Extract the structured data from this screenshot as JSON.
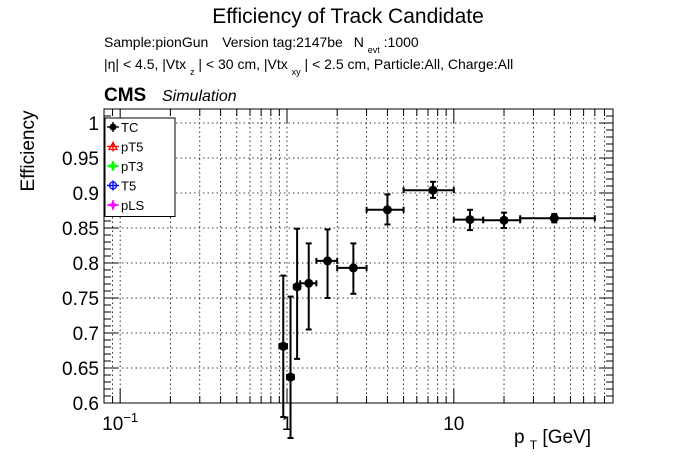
{
  "chart_data": {
    "type": "scatter",
    "title": "Efficiency of Track Candidate",
    "subtitle_line1": {
      "sample": "Sample:pionGun",
      "version": "Version tag:2147be",
      "nevt_prefix": "N",
      "nevt_sub": "evt",
      "nevt_value": ":1000"
    },
    "subtitle_line2": {
      "eta": "|η| < 4.5, |Vtx",
      "z_sub": "z",
      "vtxz": "| < 30 cm, |Vtx",
      "xy_sub": "xy",
      "rest": "| < 2.5 cm, Particle:All, Charge:All"
    },
    "cms_label": "CMS",
    "simulation_label": "Simulation",
    "ylabel": "Efficiency",
    "xlabel_p": "p",
    "xlabel_sub": "T",
    "xlabel_unit": " [GeV]",
    "xscale": "log",
    "xlim": [
      0.08,
      90
    ],
    "ylim": [
      0.6,
      1.02
    ],
    "grid": true,
    "legend_position": "top-left",
    "x_major_ticks": [
      {
        "value": 0.1,
        "label": "10",
        "sup": "−1"
      },
      {
        "value": 1,
        "label": "1",
        "sup": ""
      },
      {
        "value": 10,
        "label": "10",
        "sup": ""
      }
    ],
    "y_ticks": [
      {
        "value": 0.6,
        "label": "0.6"
      },
      {
        "value": 0.65,
        "label": "0.65"
      },
      {
        "value": 0.7,
        "label": "0.7"
      },
      {
        "value": 0.75,
        "label": "0.75"
      },
      {
        "value": 0.8,
        "label": "0.8"
      },
      {
        "value": 0.85,
        "label": "0.85"
      },
      {
        "value": 0.9,
        "label": "0.9"
      },
      {
        "value": 0.95,
        "label": "0.95"
      },
      {
        "value": 1,
        "label": "1"
      }
    ],
    "legend": [
      {
        "name": "TC",
        "color": "#000000",
        "marker": "filled-circle"
      },
      {
        "name": "pT5",
        "color": "#ff0000",
        "marker": "open-triangle"
      },
      {
        "name": "pT3",
        "color": "#00ff00",
        "marker": "filled-cross"
      },
      {
        "name": "T5",
        "color": "#0000ff",
        "marker": "open-circle"
      },
      {
        "name": "pLS",
        "color": "#ff00ff",
        "marker": "open-star"
      }
    ],
    "series": [
      {
        "name": "TC",
        "color": "#000000",
        "points": [
          {
            "x": 0.95,
            "xlo": 0.9,
            "xhi": 1.0,
            "y": 0.681,
            "ylo": 0.58,
            "yhi": 0.782
          },
          {
            "x": 1.05,
            "xlo": 1.0,
            "xhi": 1.1,
            "y": 0.637,
            "ylo": 0.55,
            "yhi": 0.752
          },
          {
            "x": 1.15,
            "xlo": 1.1,
            "xhi": 1.2,
            "y": 0.766,
            "ylo": 0.663,
            "yhi": 0.849
          },
          {
            "x": 1.35,
            "xlo": 1.2,
            "xhi": 1.5,
            "y": 0.771,
            "ylo": 0.705,
            "yhi": 0.828
          },
          {
            "x": 1.75,
            "xlo": 1.5,
            "xhi": 2.0,
            "y": 0.803,
            "ylo": 0.75,
            "yhi": 0.848
          },
          {
            "x": 2.5,
            "xlo": 2.0,
            "xhi": 3.0,
            "y": 0.793,
            "ylo": 0.756,
            "yhi": 0.828
          },
          {
            "x": 4.0,
            "xlo": 3.0,
            "xhi": 5.0,
            "y": 0.876,
            "ylo": 0.855,
            "yhi": 0.898
          },
          {
            "x": 7.5,
            "xlo": 5.0,
            "xhi": 10.0,
            "y": 0.904,
            "ylo": 0.893,
            "yhi": 0.916
          },
          {
            "x": 12.5,
            "xlo": 10.0,
            "xhi": 15.0,
            "y": 0.862,
            "ylo": 0.847,
            "yhi": 0.876
          },
          {
            "x": 20.0,
            "xlo": 15.0,
            "xhi": 25.0,
            "y": 0.861,
            "ylo": 0.85,
            "yhi": 0.872
          },
          {
            "x": 40.0,
            "xlo": 25.0,
            "xhi": 70.0,
            "y": 0.864,
            "ylo": 0.858,
            "yhi": 0.87
          }
        ]
      }
    ]
  }
}
